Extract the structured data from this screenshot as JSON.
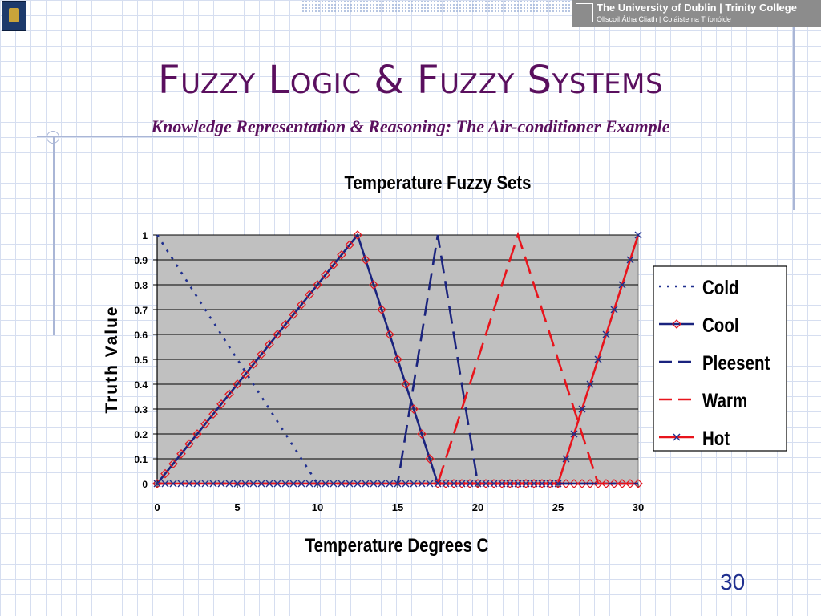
{
  "slide": {
    "title": "Fuzzy Logic & Fuzzy Systems",
    "subtitle": "Knowledge Representation & Reasoning: The Air-conditioner Example",
    "page_number": "30",
    "header": {
      "line1": "The University of Dublin | Trinity College",
      "line2": "Ollscoil Átha Cliath | Coláiste na Tríonóide"
    }
  },
  "chart_data": {
    "type": "line",
    "title": "Temperature Fuzzy Sets",
    "xlabel": "Temperature Degrees C",
    "ylabel": "Truth Value",
    "xlim": [
      0,
      30
    ],
    "ylim": [
      0,
      1
    ],
    "xticks": [
      0,
      5,
      10,
      15,
      20,
      25,
      30
    ],
    "yticks": [
      0,
      0.1,
      0.2,
      0.3,
      0.4,
      0.5,
      0.6,
      0.7,
      0.8,
      0.9,
      1
    ],
    "grid": true,
    "plot_background": "#c0c0c0",
    "legend": "right",
    "series": [
      {
        "name": "Cold",
        "color": "#1f2f8f",
        "style": "dotted",
        "marker": "none",
        "x": [
          0,
          10,
          30
        ],
        "y": [
          1,
          0,
          0
        ]
      },
      {
        "name": "Cool",
        "color": "#1a237e",
        "style": "solid",
        "marker": "diamond",
        "x": [
          0,
          12.5,
          17.5,
          30
        ],
        "y": [
          0,
          1,
          0,
          0
        ]
      },
      {
        "name": "Pleesent",
        "color": "#1a237e",
        "style": "dashed",
        "marker": "none",
        "x": [
          0,
          15,
          17.5,
          20,
          30
        ],
        "y": [
          0,
          0,
          1,
          0,
          0
        ]
      },
      {
        "name": "Warm",
        "color": "#e8141c",
        "style": "dashed",
        "marker": "none",
        "x": [
          0,
          17.5,
          22.5,
          27.5,
          30
        ],
        "y": [
          0,
          0,
          1,
          0,
          0
        ]
      },
      {
        "name": "Hot",
        "color": "#e8141c",
        "style": "solid",
        "marker": "x",
        "marker_color": "#1f2f8f",
        "x": [
          0,
          25,
          30
        ],
        "y": [
          0,
          0,
          1
        ]
      }
    ]
  }
}
